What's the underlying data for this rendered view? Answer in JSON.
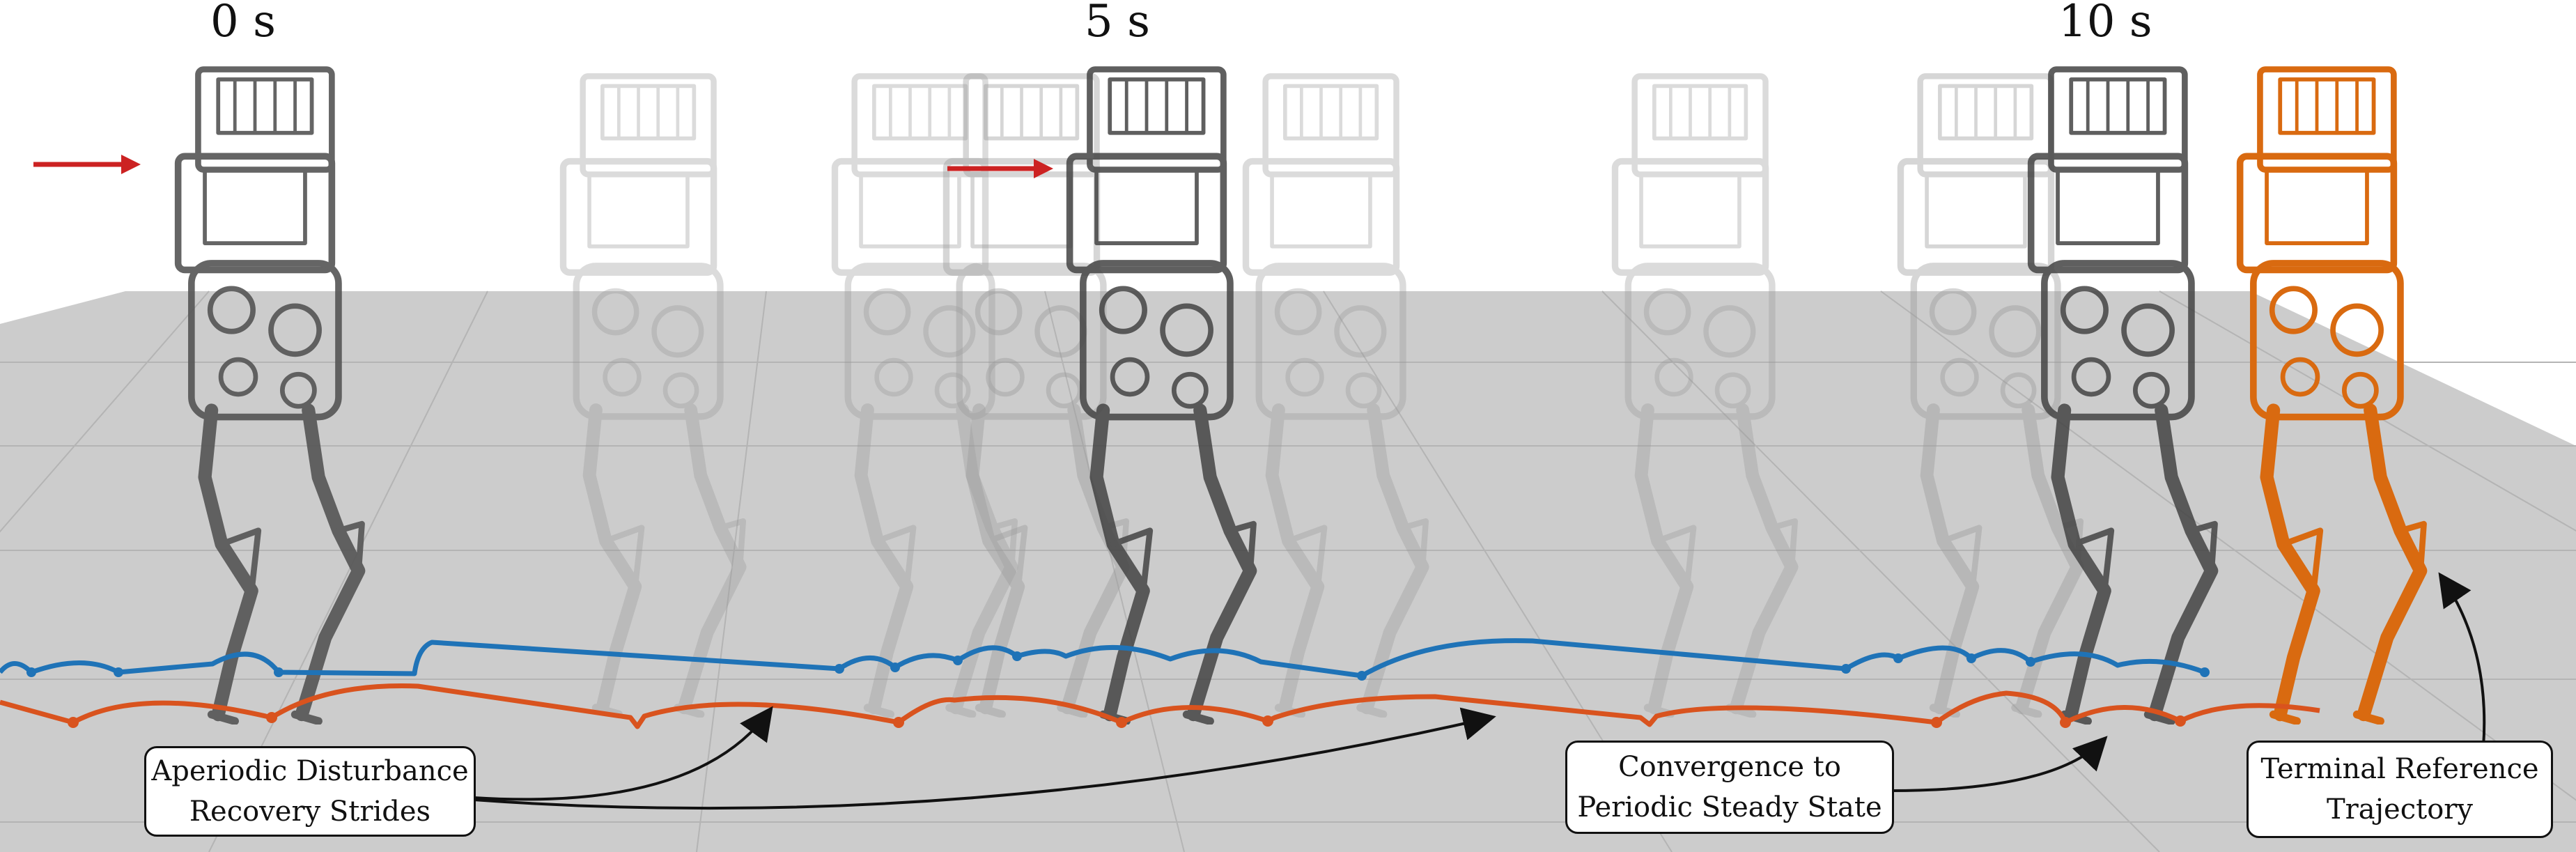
{
  "time_labels": [
    "0 s",
    "5 s",
    "10 s"
  ],
  "callouts": {
    "aperiodic": [
      "Aperiodic Disturbance",
      "Recovery Strides"
    ],
    "convergence": [
      "Convergence to",
      "Periodic Steady State"
    ],
    "terminal": [
      "Terminal Reference",
      "Trajectory"
    ]
  },
  "colors": {
    "floor": "#cccccc",
    "grid": "#b4b4b4",
    "robot_snapshot": "#555555",
    "robot_terminal": "#d96a10",
    "blue_foot_trajectory": "#1f73b7",
    "orange_foot_trajectory": "#d9531e",
    "disturbance_arrow": "#cc2222",
    "annotation_arrow": "#111111"
  },
  "icons": [
    "push-disturbance-arrow",
    "robot-snapshot",
    "terminal-robot"
  ]
}
